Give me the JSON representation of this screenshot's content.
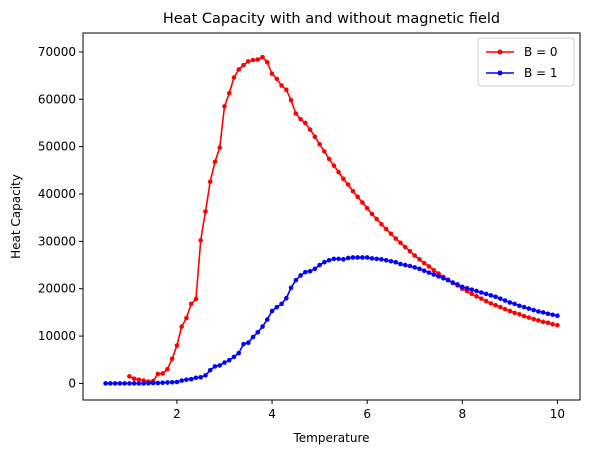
{
  "chart_data": {
    "type": "line",
    "title": "Heat Capacity with and without magnetic field",
    "xlabel": "Temperature",
    "ylabel": "Heat Capacity",
    "xlim": [
      0.5,
      10.0
    ],
    "ylim": [
      0,
      70000
    ],
    "xticks": [
      2,
      4,
      6,
      8,
      10
    ],
    "yticks": [
      0,
      10000,
      20000,
      30000,
      40000,
      50000,
      60000,
      70000
    ],
    "grid": false,
    "legend_position": "top-right",
    "series": [
      {
        "name": "B = 0",
        "color": "#ff0000",
        "marker": "circle",
        "points": [
          [
            1.0,
            1500
          ],
          [
            1.1,
            1000
          ],
          [
            1.2,
            800
          ],
          [
            1.3,
            600
          ],
          [
            1.4,
            400
          ],
          [
            1.5,
            500
          ],
          [
            1.6,
            2000
          ],
          [
            1.7,
            2100
          ],
          [
            1.8,
            3000
          ],
          [
            1.9,
            5200
          ],
          [
            2.0,
            8000
          ],
          [
            2.1,
            12000
          ],
          [
            2.2,
            13800
          ],
          [
            2.3,
            16800
          ],
          [
            2.4,
            17800
          ],
          [
            2.5,
            30200
          ],
          [
            2.6,
            36300
          ],
          [
            2.7,
            42600
          ],
          [
            2.8,
            46800
          ],
          [
            2.9,
            49800
          ],
          [
            3.0,
            58500
          ],
          [
            3.1,
            61300
          ],
          [
            3.2,
            64600
          ],
          [
            3.3,
            66300
          ],
          [
            3.4,
            67200
          ],
          [
            3.5,
            68000
          ],
          [
            3.6,
            68300
          ],
          [
            3.7,
            68400
          ],
          [
            3.8,
            68900
          ],
          [
            3.9,
            67800
          ],
          [
            4.0,
            65400
          ],
          [
            4.1,
            64300
          ],
          [
            4.2,
            62900
          ],
          [
            4.3,
            62000
          ],
          [
            4.4,
            59800
          ],
          [
            4.5,
            57000
          ],
          [
            4.6,
            55800
          ],
          [
            4.7,
            55000
          ],
          [
            4.8,
            53600
          ],
          [
            4.9,
            52100
          ],
          [
            5.0,
            50500
          ],
          [
            5.1,
            49000
          ],
          [
            5.2,
            47400
          ],
          [
            5.3,
            46000
          ],
          [
            5.4,
            44600
          ],
          [
            5.5,
            43200
          ],
          [
            5.6,
            42000
          ],
          [
            5.7,
            40600
          ],
          [
            5.8,
            39400
          ],
          [
            5.9,
            38200
          ],
          [
            6.0,
            37000
          ],
          [
            6.1,
            35800
          ],
          [
            6.2,
            34700
          ],
          [
            6.3,
            33600
          ],
          [
            6.4,
            32600
          ],
          [
            6.5,
            31600
          ],
          [
            6.6,
            30600
          ],
          [
            6.7,
            29700
          ],
          [
            6.8,
            28800
          ],
          [
            6.9,
            27900
          ],
          [
            7.0,
            27000
          ],
          [
            7.1,
            26200
          ],
          [
            7.2,
            25400
          ],
          [
            7.3,
            24700
          ],
          [
            7.4,
            23900
          ],
          [
            7.5,
            23200
          ],
          [
            7.6,
            22500
          ],
          [
            7.7,
            21900
          ],
          [
            7.8,
            21200
          ],
          [
            7.9,
            20700
          ],
          [
            8.0,
            20000
          ],
          [
            8.1,
            19500
          ],
          [
            8.2,
            18900
          ],
          [
            8.3,
            18400
          ],
          [
            8.4,
            17900
          ],
          [
            8.5,
            17400
          ],
          [
            8.6,
            16900
          ],
          [
            8.7,
            16500
          ],
          [
            8.8,
            16100
          ],
          [
            8.9,
            15700
          ],
          [
            9.0,
            15300
          ],
          [
            9.1,
            14900
          ],
          [
            9.2,
            14600
          ],
          [
            9.3,
            14200
          ],
          [
            9.4,
            13900
          ],
          [
            9.5,
            13600
          ],
          [
            9.6,
            13300
          ],
          [
            9.7,
            13000
          ],
          [
            9.8,
            12800
          ],
          [
            9.9,
            12500
          ],
          [
            10.0,
            12300
          ]
        ]
      },
      {
        "name": "B = 1",
        "color": "#0000ff",
        "marker": "circle",
        "points": [
          [
            0.5,
            0
          ],
          [
            0.6,
            0
          ],
          [
            0.7,
            0
          ],
          [
            0.8,
            0
          ],
          [
            0.9,
            0
          ],
          [
            1.0,
            0
          ],
          [
            1.1,
            0
          ],
          [
            1.2,
            0
          ],
          [
            1.3,
            0
          ],
          [
            1.4,
            50
          ],
          [
            1.5,
            100
          ],
          [
            1.6,
            100
          ],
          [
            1.7,
            150
          ],
          [
            1.8,
            200
          ],
          [
            1.9,
            250
          ],
          [
            2.0,
            300
          ],
          [
            2.1,
            600
          ],
          [
            2.2,
            800
          ],
          [
            2.3,
            900
          ],
          [
            2.4,
            1200
          ],
          [
            2.5,
            1300
          ],
          [
            2.6,
            1700
          ],
          [
            2.7,
            2800
          ],
          [
            2.8,
            3600
          ],
          [
            2.9,
            3800
          ],
          [
            3.0,
            4400
          ],
          [
            3.1,
            4900
          ],
          [
            3.2,
            5600
          ],
          [
            3.3,
            6400
          ],
          [
            3.4,
            8300
          ],
          [
            3.5,
            8600
          ],
          [
            3.6,
            9800
          ],
          [
            3.7,
            10800
          ],
          [
            3.8,
            12000
          ],
          [
            3.9,
            13500
          ],
          [
            4.0,
            15300
          ],
          [
            4.1,
            16100
          ],
          [
            4.2,
            16800
          ],
          [
            4.3,
            18000
          ],
          [
            4.4,
            20200
          ],
          [
            4.5,
            21800
          ],
          [
            4.6,
            22800
          ],
          [
            4.7,
            23500
          ],
          [
            4.8,
            23700
          ],
          [
            4.9,
            24200
          ],
          [
            5.0,
            25000
          ],
          [
            5.1,
            25600
          ],
          [
            5.2,
            26000
          ],
          [
            5.3,
            26300
          ],
          [
            5.4,
            26300
          ],
          [
            5.5,
            26200
          ],
          [
            5.6,
            26500
          ],
          [
            5.7,
            26600
          ],
          [
            5.8,
            26600
          ],
          [
            5.9,
            26600
          ],
          [
            6.0,
            26600
          ],
          [
            6.1,
            26400
          ],
          [
            6.2,
            26300
          ],
          [
            6.3,
            26200
          ],
          [
            6.4,
            26000
          ],
          [
            6.5,
            25800
          ],
          [
            6.6,
            25600
          ],
          [
            6.7,
            25200
          ],
          [
            6.8,
            25000
          ],
          [
            6.9,
            24800
          ],
          [
            7.0,
            24500
          ],
          [
            7.1,
            24200
          ],
          [
            7.2,
            23800
          ],
          [
            7.3,
            23400
          ],
          [
            7.4,
            23000
          ],
          [
            7.5,
            22600
          ],
          [
            7.6,
            22200
          ],
          [
            7.7,
            21800
          ],
          [
            7.8,
            21300
          ],
          [
            7.9,
            20900
          ],
          [
            8.0,
            20400
          ],
          [
            8.1,
            20100
          ],
          [
            8.2,
            19800
          ],
          [
            8.3,
            19500
          ],
          [
            8.4,
            19200
          ],
          [
            8.5,
            18900
          ],
          [
            8.6,
            18600
          ],
          [
            8.7,
            18300
          ],
          [
            8.8,
            17900
          ],
          [
            8.9,
            17500
          ],
          [
            9.0,
            17100
          ],
          [
            9.1,
            16800
          ],
          [
            9.2,
            16400
          ],
          [
            9.3,
            16100
          ],
          [
            9.4,
            15800
          ],
          [
            9.5,
            15500
          ],
          [
            9.6,
            15200
          ],
          [
            9.7,
            15000
          ],
          [
            9.8,
            14700
          ],
          [
            9.9,
            14500
          ],
          [
            10.0,
            14300
          ]
        ]
      }
    ]
  }
}
